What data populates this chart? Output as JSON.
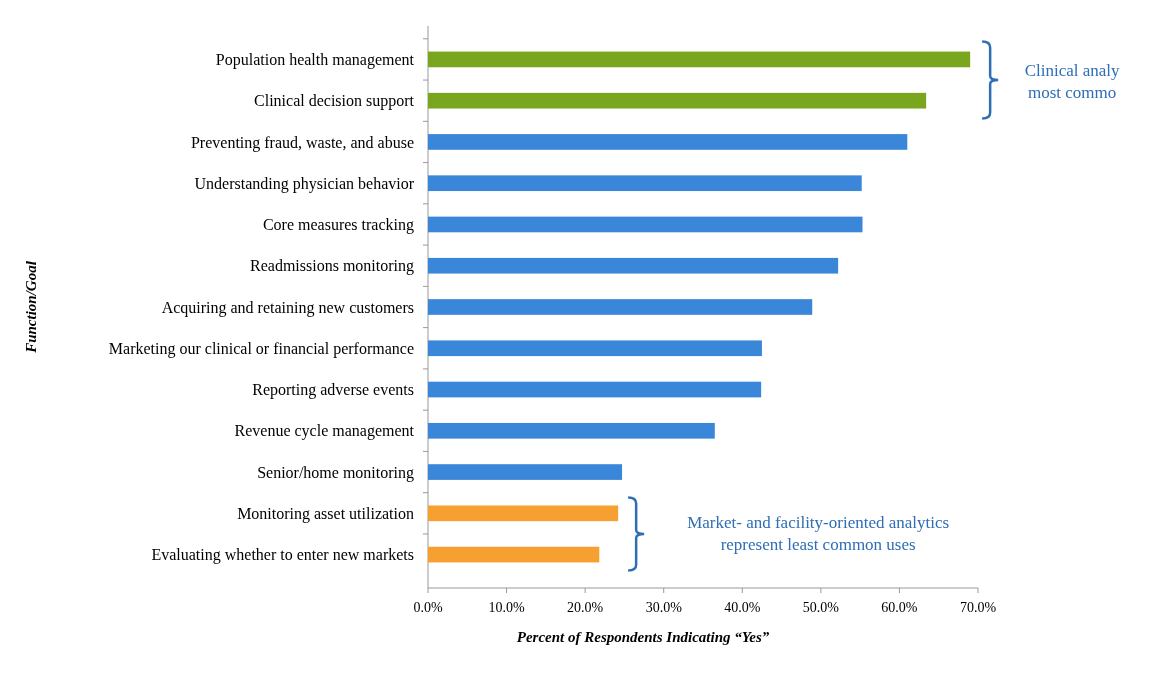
{
  "chart_data": {
    "type": "bar",
    "orientation": "horizontal",
    "xlabel": "Percent of Respondents Indicating “Yes”",
    "ylabel": "Function/Goal",
    "categories": [
      "Population health management",
      "Clinical decision support",
      "Preventing fraud, waste, and abuse",
      "Understanding physician behavior",
      "Core measures tracking",
      "Readmissions monitoring",
      "Acquiring and retaining new customers",
      "Marketing our clinical or financial performance",
      "Reporting adverse events",
      "Revenue cycle management",
      "Senior/home monitoring",
      "Monitoring asset utilization",
      "Evaluating whether to enter new markets"
    ],
    "values": [
      69.0,
      63.4,
      61.0,
      55.2,
      55.3,
      52.2,
      48.9,
      42.5,
      42.4,
      36.5,
      24.7,
      24.2,
      21.8
    ],
    "colors": [
      "#7aa51e",
      "#7aa51e",
      "#3a86d8",
      "#3a86d8",
      "#3a86d8",
      "#3a86d8",
      "#3a86d8",
      "#3a86d8",
      "#3a86d8",
      "#3a86d8",
      "#3a86d8",
      "#f5a030",
      "#f5a030"
    ],
    "xlim": [
      0,
      70
    ],
    "xticks": [
      {
        "value": 0,
        "label": "0.0%"
      },
      {
        "value": 10,
        "label": "10.0%"
      },
      {
        "value": 20,
        "label": "20.0%"
      },
      {
        "value": 30,
        "label": "30.0%"
      },
      {
        "value": 40,
        "label": "40.0%"
      },
      {
        "value": 50,
        "label": "50.0%"
      },
      {
        "value": 60,
        "label": "60.0%"
      },
      {
        "value": 70,
        "label": "70.0%"
      }
    ],
    "grid": false,
    "annotations": [
      "Clinical analy\nmost commo",
      "Market- and facility-oriented analytics\nrepresent least common uses"
    ]
  }
}
